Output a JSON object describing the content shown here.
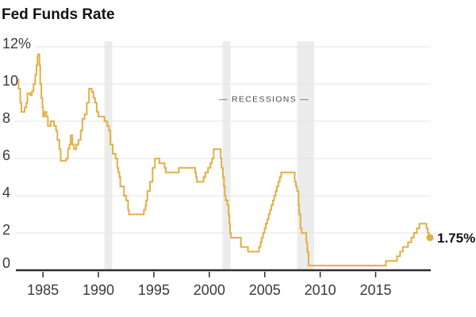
{
  "title": "Fed Funds Rate",
  "chart_data": {
    "type": "line",
    "step": true,
    "title": "Fed Funds Rate",
    "y_unit": "%",
    "x_domain": [
      1982.7,
      2019.9
    ],
    "y_domain": [
      0,
      12
    ],
    "x_ticks": [
      {
        "v": 1985,
        "label": "1985"
      },
      {
        "v": 1990,
        "label": "1990"
      },
      {
        "v": 1995,
        "label": "1995"
      },
      {
        "v": 2000,
        "label": "2000"
      },
      {
        "v": 2005,
        "label": "2005"
      },
      {
        "v": 2010,
        "label": "2010"
      },
      {
        "v": 2015,
        "label": "2015"
      }
    ],
    "y_ticks": [
      {
        "v": 0,
        "label": "0"
      },
      {
        "v": 2,
        "label": "2"
      },
      {
        "v": 4,
        "label": "4"
      },
      {
        "v": 6,
        "label": "6"
      },
      {
        "v": 8,
        "label": "8"
      },
      {
        "v": 10,
        "label": "10"
      },
      {
        "v": 12,
        "label": "12%"
      }
    ],
    "recession_label": "— RECESSIONS —",
    "recession_label_pos": {
      "year": 2004.95,
      "value": 9.05
    },
    "recession_bands": [
      [
        1990.55,
        1991.25
      ],
      [
        2001.2,
        2001.92
      ],
      [
        2007.92,
        2009.45
      ]
    ],
    "series": [
      {
        "name": "Fed funds rate",
        "points": [
          [
            1982.7,
            10.25
          ],
          [
            1982.8,
            9.75
          ],
          [
            1982.95,
            9.0
          ],
          [
            1983.05,
            8.5
          ],
          [
            1983.35,
            8.75
          ],
          [
            1983.5,
            9.0
          ],
          [
            1983.6,
            9.5
          ],
          [
            1983.85,
            9.4
          ],
          [
            1984.0,
            9.6
          ],
          [
            1984.15,
            10.0
          ],
          [
            1984.3,
            10.5
          ],
          [
            1984.42,
            11.0
          ],
          [
            1984.5,
            11.5
          ],
          [
            1984.58,
            11.6
          ],
          [
            1984.68,
            11.0
          ],
          [
            1984.75,
            10.0
          ],
          [
            1984.85,
            9.25
          ],
          [
            1984.95,
            8.75
          ],
          [
            1985.02,
            8.25
          ],
          [
            1985.15,
            8.5
          ],
          [
            1985.32,
            8.25
          ],
          [
            1985.45,
            7.75
          ],
          [
            1985.7,
            8.0
          ],
          [
            1986.0,
            7.75
          ],
          [
            1986.18,
            7.5
          ],
          [
            1986.3,
            7.0
          ],
          [
            1986.48,
            6.5
          ],
          [
            1986.6,
            5.875
          ],
          [
            1987.1,
            6.0
          ],
          [
            1987.25,
            6.5
          ],
          [
            1987.38,
            6.75
          ],
          [
            1987.5,
            7.25
          ],
          [
            1987.65,
            6.75
          ],
          [
            1987.8,
            6.5
          ],
          [
            1988.0,
            6.75
          ],
          [
            1988.2,
            7.0
          ],
          [
            1988.4,
            7.5
          ],
          [
            1988.55,
            8.125
          ],
          [
            1988.75,
            8.375
          ],
          [
            1988.95,
            9.0
          ],
          [
            1989.15,
            9.75
          ],
          [
            1989.4,
            9.5625
          ],
          [
            1989.55,
            9.25
          ],
          [
            1989.7,
            9.0
          ],
          [
            1989.85,
            8.5
          ],
          [
            1990.0,
            8.25
          ],
          [
            1990.55,
            8.0
          ],
          [
            1990.8,
            7.75
          ],
          [
            1990.95,
            7.5
          ],
          [
            1991.08,
            6.75
          ],
          [
            1991.3,
            6.25
          ],
          [
            1991.55,
            6.0
          ],
          [
            1991.7,
            5.5
          ],
          [
            1991.8,
            5.25
          ],
          [
            1991.9,
            5.0
          ],
          [
            1991.97,
            4.5
          ],
          [
            1992.3,
            4.0
          ],
          [
            1992.5,
            3.75
          ],
          [
            1992.68,
            3.25
          ],
          [
            1992.75,
            3.0
          ],
          [
            1994.1,
            3.25
          ],
          [
            1994.25,
            3.5
          ],
          [
            1994.32,
            3.75
          ],
          [
            1994.42,
            4.25
          ],
          [
            1994.65,
            4.75
          ],
          [
            1994.88,
            5.5
          ],
          [
            1995.1,
            6.0
          ],
          [
            1995.5,
            5.75
          ],
          [
            1995.97,
            5.5
          ],
          [
            1996.08,
            5.25
          ],
          [
            1997.25,
            5.5
          ],
          [
            1998.73,
            5.25
          ],
          [
            1998.8,
            5.0
          ],
          [
            1998.88,
            4.75
          ],
          [
            1999.48,
            5.0
          ],
          [
            1999.65,
            5.25
          ],
          [
            1999.88,
            5.5
          ],
          [
            2000.1,
            5.75
          ],
          [
            2000.25,
            6.0
          ],
          [
            2000.4,
            6.5
          ],
          [
            2001.03,
            6.0
          ],
          [
            2001.1,
            5.5
          ],
          [
            2001.22,
            5.0
          ],
          [
            2001.32,
            4.5
          ],
          [
            2001.4,
            4.0
          ],
          [
            2001.48,
            3.75
          ],
          [
            2001.63,
            3.5
          ],
          [
            2001.73,
            3.0
          ],
          [
            2001.8,
            2.5
          ],
          [
            2001.87,
            2.0
          ],
          [
            2001.95,
            1.75
          ],
          [
            2002.85,
            1.25
          ],
          [
            2003.48,
            1.0
          ],
          [
            2004.48,
            1.25
          ],
          [
            2004.62,
            1.5
          ],
          [
            2004.72,
            1.75
          ],
          [
            2004.85,
            2.0
          ],
          [
            2004.98,
            2.25
          ],
          [
            2005.1,
            2.5
          ],
          [
            2005.23,
            2.75
          ],
          [
            2005.35,
            3.0
          ],
          [
            2005.48,
            3.25
          ],
          [
            2005.6,
            3.5
          ],
          [
            2005.73,
            3.75
          ],
          [
            2005.85,
            4.0
          ],
          [
            2005.98,
            4.25
          ],
          [
            2006.1,
            4.5
          ],
          [
            2006.23,
            4.75
          ],
          [
            2006.35,
            5.0
          ],
          [
            2006.48,
            5.25
          ],
          [
            2007.7,
            4.75
          ],
          [
            2007.82,
            4.5
          ],
          [
            2007.92,
            4.25
          ],
          [
            2008.05,
            3.5
          ],
          [
            2008.1,
            3.0
          ],
          [
            2008.22,
            2.25
          ],
          [
            2008.33,
            2.0
          ],
          [
            2008.75,
            1.5
          ],
          [
            2008.83,
            1.0
          ],
          [
            2008.95,
            0.25
          ],
          [
            2015.92,
            0.5
          ],
          [
            2016.92,
            0.75
          ],
          [
            2017.2,
            1.0
          ],
          [
            2017.45,
            1.25
          ],
          [
            2017.92,
            1.5
          ],
          [
            2018.22,
            1.75
          ],
          [
            2018.45,
            2.0
          ],
          [
            2018.72,
            2.25
          ],
          [
            2018.95,
            2.5
          ],
          [
            2019.58,
            2.25
          ],
          [
            2019.7,
            2.0
          ],
          [
            2019.8,
            1.75
          ]
        ]
      }
    ],
    "end_label": "1.75%",
    "end_value": 1.75,
    "colors": {
      "line": "#E0AF44",
      "grid": "#E3E3E3",
      "band": "#ECECEC",
      "axis": "#2E2E2E",
      "tick_text": "#3A3A3A",
      "annotation": "#4A4A4A",
      "title": "#121212"
    }
  }
}
